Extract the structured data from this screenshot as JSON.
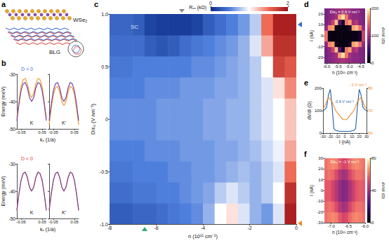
{
  "chart_data": [
    {
      "type": "schematic",
      "panel": "a",
      "annotations": [
        "WSe₂",
        "BLG"
      ]
    },
    {
      "type": "line",
      "panel": "b",
      "xlabel": "kₓ (1/a)",
      "ylabel": "Energy (meV)",
      "x": [
        -0.07,
        -0.06,
        -0.05,
        -0.04,
        -0.03,
        -0.02,
        -0.01,
        0,
        0.01,
        0.02,
        0.03,
        0.04,
        0.05,
        0.06,
        0.07
      ],
      "xlim": [
        -0.07,
        0.07
      ],
      "xticks": [
        -0.05,
        0.05
      ],
      "ylim": [
        -50,
        -30
      ],
      "yticks": [
        -50,
        -40,
        -30
      ],
      "subplots": [
        {
          "title": "D > 0",
          "valleys": [
            {
              "label": "K",
              "series": [
                {
                  "color": "#f0a030",
                  "values": [
                    -46,
                    -40,
                    -34.5,
                    -32,
                    -31.5,
                    -33.5,
                    -37,
                    -38.5,
                    -37,
                    -33.5,
                    -31.5,
                    -32,
                    -34.5,
                    -40,
                    -46
                  ]
                },
                {
                  "color": "#7b3fa6",
                  "values": [
                    -47,
                    -41,
                    -36,
                    -33.5,
                    -33,
                    -35,
                    -38.5,
                    -40,
                    -38.5,
                    -35,
                    -33,
                    -33.5,
                    -36,
                    -41,
                    -47
                  ]
                }
              ]
            },
            {
              "label": "K′",
              "series": [
                {
                  "color": "#f0a030",
                  "values": [
                    -48.5,
                    -42.5,
                    -37.5,
                    -35,
                    -34.5,
                    -36.5,
                    -40,
                    -41.5,
                    -40,
                    -36.5,
                    -34.5,
                    -35,
                    -37.5,
                    -42.5,
                    -48.5
                  ]
                },
                {
                  "color": "#7b3fa6",
                  "values": [
                    -47,
                    -41,
                    -36,
                    -33.5,
                    -33,
                    -35,
                    -38.5,
                    -40,
                    -38.5,
                    -35,
                    -33,
                    -33.5,
                    -36,
                    -41,
                    -47
                  ]
                }
              ]
            }
          ]
        },
        {
          "title": "D < 0",
          "valleys": [
            {
              "label": "K",
              "series": [
                {
                  "color": "#f0a030",
                  "values": [
                    -47,
                    -41,
                    -36,
                    -33.5,
                    -33,
                    -35,
                    -38.5,
                    -40,
                    -38.5,
                    -35,
                    -33,
                    -33.5,
                    -36,
                    -41,
                    -47
                  ]
                },
                {
                  "color": "#7b3fa6",
                  "values": [
                    -47,
                    -41,
                    -36,
                    -33.5,
                    -33,
                    -35,
                    -38.5,
                    -40,
                    -38.5,
                    -35,
                    -33,
                    -33.5,
                    -36,
                    -41,
                    -47
                  ]
                }
              ]
            },
            {
              "label": "K′",
              "series": [
                {
                  "color": "#f0a030",
                  "values": [
                    -47,
                    -41,
                    -36,
                    -33.5,
                    -33,
                    -35,
                    -38.5,
                    -40,
                    -38.5,
                    -35,
                    -33,
                    -33.5,
                    -36,
                    -41,
                    -47
                  ]
                },
                {
                  "color": "#7b3fa6",
                  "values": [
                    -47,
                    -41,
                    -36,
                    -33.5,
                    -33,
                    -35,
                    -38.5,
                    -40,
                    -38.5,
                    -35,
                    -33,
                    -33.5,
                    -36,
                    -41,
                    -47
                  ]
                }
              ]
            }
          ]
        }
      ]
    },
    {
      "type": "heatmap",
      "panel": "c",
      "xlabel": "n (10¹¹ cm⁻²)",
      "ylabel": "D/ε₀ (V nm⁻¹)",
      "xlim": [
        -8,
        0
      ],
      "xticks": [
        -8,
        -6,
        -4,
        -2,
        0
      ],
      "ylim": [
        -1,
        1
      ],
      "yticks": [
        {
          "value": -1,
          "label": "-1.0"
        },
        -0.5,
        0,
        0.5,
        {
          "value": 1,
          "label": "1.0"
        }
      ],
      "x_edges": [
        -8,
        -7.5,
        -7,
        -6.5,
        -6,
        -5.5,
        -5,
        -4.5,
        -4,
        -3.5,
        -3,
        -2.5,
        -2,
        -1.5,
        -1,
        -0.5,
        0
      ],
      "y_edges": [
        -1,
        -0.8,
        -0.6,
        -0.4,
        -0.2,
        0,
        0.2,
        0.4,
        0.6,
        0.8,
        1
      ],
      "cells": [
        [
          0.3,
          0.3,
          0.35,
          0.35,
          0.4,
          0.45,
          0.5,
          0.55,
          0.7,
          1.0,
          1.1,
          0.9,
          0.7,
          0.6,
          0.9,
          1.9
        ],
        [
          0.4,
          0.4,
          0.45,
          0.45,
          0.5,
          0.5,
          0.55,
          0.6,
          0.65,
          0.8,
          0.9,
          0.8,
          0.7,
          0.8,
          1.0,
          1.8
        ],
        [
          0.45,
          0.45,
          0.5,
          0.5,
          0.5,
          0.55,
          0.55,
          0.6,
          0.6,
          0.65,
          0.7,
          0.75,
          0.7,
          0.8,
          0.9,
          1.5
        ],
        [
          0.5,
          0.5,
          0.5,
          0.55,
          0.55,
          0.55,
          0.6,
          0.6,
          0.6,
          0.65,
          0.65,
          0.7,
          0.75,
          0.85,
          0.95,
          1.3
        ],
        [
          0.55,
          0.55,
          0.55,
          0.55,
          0.6,
          0.6,
          0.6,
          0.6,
          0.65,
          0.65,
          0.7,
          0.7,
          0.8,
          0.9,
          1.0,
          1.2
        ],
        [
          0.55,
          0.55,
          0.55,
          0.55,
          0.6,
          0.6,
          0.6,
          0.6,
          0.65,
          0.65,
          0.7,
          0.7,
          0.8,
          0.9,
          1.0,
          1.2
        ],
        [
          0.5,
          0.5,
          0.5,
          0.55,
          0.55,
          0.55,
          0.6,
          0.6,
          0.6,
          0.65,
          0.65,
          0.7,
          0.8,
          0.9,
          1.1,
          1.4
        ],
        [
          0.45,
          0.45,
          0.5,
          0.5,
          0.5,
          0.5,
          0.5,
          0.55,
          0.55,
          0.6,
          0.65,
          0.7,
          0.8,
          1.0,
          1.7,
          1.6
        ],
        [
          0.4,
          0.4,
          0.4,
          0.3,
          0.25,
          0.3,
          0.4,
          0.45,
          0.5,
          0.55,
          0.6,
          0.7,
          0.9,
          1.3,
          1.8,
          1.8
        ],
        [
          0.35,
          0.35,
          0.3,
          0.15,
          0.1,
          0.1,
          0.1,
          0.15,
          0.3,
          0.4,
          0.5,
          0.6,
          0.8,
          1.5,
          1.9,
          1.9
        ]
      ],
      "colorbar": {
        "label": "Rₓₓ (kΩ)",
        "range": [
          0,
          2
        ],
        "ticks": [
          0,
          2
        ]
      },
      "annotations": [
        "SC"
      ]
    },
    {
      "type": "heatmap",
      "panel": "d",
      "title": "D/ε₀ = 0.9 V nm⁻¹",
      "xlabel": "n (10¹¹ cm⁻²)",
      "ylabel": "I (nA)",
      "xlim": [
        -6.1,
        -4.3
      ],
      "xticks": [
        {
          "value": -6,
          "label": "-6.0"
        },
        -5.5,
        {
          "value": -5,
          "label": "-5.0"
        },
        -4.5
      ],
      "ylim": [
        -25,
        25
      ],
      "yticks": [
        -20,
        -10,
        0,
        10,
        20
      ],
      "x_edges": [
        -6.1,
        -5.95,
        -5.8,
        -5.65,
        -5.5,
        -5.35,
        -5.2,
        -5.05,
        -4.9,
        -4.75,
        -4.6,
        -4.45,
        -4.3
      ],
      "y_edges": [
        -25,
        -20,
        -15,
        -10,
        -5,
        0,
        5,
        10,
        15,
        20,
        25
      ],
      "cells": [
        [
          80,
          85,
          90,
          95,
          100,
          105,
          100,
          95,
          90,
          90,
          85,
          80
        ],
        [
          80,
          85,
          90,
          100,
          170,
          190,
          150,
          100,
          90,
          90,
          85,
          80
        ],
        [
          80,
          90,
          120,
          180,
          60,
          15,
          150,
          170,
          100,
          110,
          85,
          80
        ],
        [
          90,
          160,
          170,
          10,
          5,
          5,
          5,
          20,
          170,
          180,
          150,
          90
        ],
        [
          150,
          10,
          5,
          5,
          5,
          5,
          5,
          5,
          10,
          10,
          20,
          120
        ],
        [
          150,
          10,
          5,
          5,
          5,
          5,
          5,
          5,
          10,
          10,
          20,
          120
        ],
        [
          90,
          160,
          170,
          10,
          5,
          5,
          5,
          20,
          170,
          180,
          150,
          90
        ],
        [
          80,
          90,
          120,
          180,
          60,
          15,
          150,
          170,
          100,
          110,
          85,
          80
        ],
        [
          80,
          85,
          90,
          100,
          170,
          190,
          150,
          100,
          90,
          90,
          85,
          80
        ],
        [
          80,
          85,
          90,
          95,
          100,
          105,
          100,
          95,
          90,
          90,
          85,
          80
        ]
      ],
      "colorbar": {
        "label": "dV/dI (Ω)",
        "range": [
          0,
          200
        ],
        "ticks": [
          0,
          100,
          200
        ]
      }
    },
    {
      "type": "line",
      "panel": "e",
      "xlabel": "I (nA)",
      "ylabel": "dV/dI (Ω)",
      "x": [
        -30,
        -27.5,
        -25,
        -22.5,
        -20,
        -17.5,
        -15,
        -12.5,
        -10,
        -7.5,
        -5,
        -2.5,
        0,
        2.5,
        5,
        7.5,
        10,
        12.5,
        15,
        17.5,
        20,
        22.5,
        25,
        27.5,
        30
      ],
      "xlim": [
        -30,
        30
      ],
      "xticks": [
        -30,
        -20,
        -10,
        0,
        10,
        20,
        30
      ],
      "ylim": [
        0,
        200
      ],
      "yticks": [
        0,
        100,
        200
      ],
      "y2lim": [
        60,
        80
      ],
      "y2ticks": [
        60,
        70,
        80
      ],
      "series": [
        {
          "name": "0.9 V nm⁻¹",
          "color": "#1f5fa8",
          "values": [
            100,
            105,
            115,
            170,
            195,
            120,
            20,
            12,
            10,
            8,
            8,
            8,
            8,
            8,
            8,
            8,
            10,
            12,
            20,
            120,
            195,
            170,
            115,
            105,
            100
          ]
        },
        {
          "name": "−1 V nm⁻¹",
          "color": "#f08a2c",
          "axis": "y2",
          "values": [
            71,
            72,
            74,
            76,
            75,
            74,
            72,
            70,
            69,
            68,
            67,
            66,
            66,
            66,
            67,
            68,
            69,
            70,
            72,
            74,
            75,
            76,
            74,
            72,
            71
          ]
        }
      ]
    },
    {
      "type": "heatmap",
      "panel": "f",
      "title": "D/ε₀ = −1 V nm⁻¹",
      "xlabel": "n (10¹¹ cm⁻²)",
      "ylabel": "I (nA)",
      "xlim": [
        -7.2,
        -6
      ],
      "xticks": [
        {
          "value": -7,
          "label": "-7.0"
        },
        -6.5,
        {
          "value": -6,
          "label": "-6.0"
        }
      ],
      "ylim": [
        -30,
        30
      ],
      "yticks": [
        -30,
        -20,
        -10,
        0,
        10,
        20,
        30
      ],
      "x_edges": [
        -7.2,
        -7.1,
        -7,
        -6.9,
        -6.8,
        -6.7,
        -6.6,
        -6.5,
        -6.4,
        -6.3,
        -6.2,
        -6.1,
        -6
      ],
      "y_edges": [
        -30,
        -20,
        -10,
        0,
        10,
        20,
        30
      ],
      "cells": [
        [
          60,
          62,
          64,
          62,
          55,
          50,
          52,
          58,
          62,
          64,
          62,
          60
        ],
        [
          58,
          60,
          58,
          52,
          44,
          40,
          42,
          50,
          56,
          60,
          60,
          58
        ],
        [
          55,
          55,
          50,
          44,
          38,
          34,
          36,
          42,
          48,
          54,
          56,
          55
        ],
        [
          55,
          55,
          50,
          44,
          38,
          34,
          36,
          42,
          48,
          54,
          56,
          55
        ],
        [
          58,
          60,
          58,
          52,
          44,
          40,
          42,
          50,
          56,
          60,
          60,
          58
        ],
        [
          60,
          62,
          64,
          62,
          55,
          50,
          52,
          58,
          62,
          64,
          62,
          60
        ]
      ],
      "colorbar": {
        "label": "dV/dI (Ω)",
        "range": [
          0,
          80
        ],
        "ticks": [
          0,
          40,
          80
        ]
      }
    }
  ]
}
